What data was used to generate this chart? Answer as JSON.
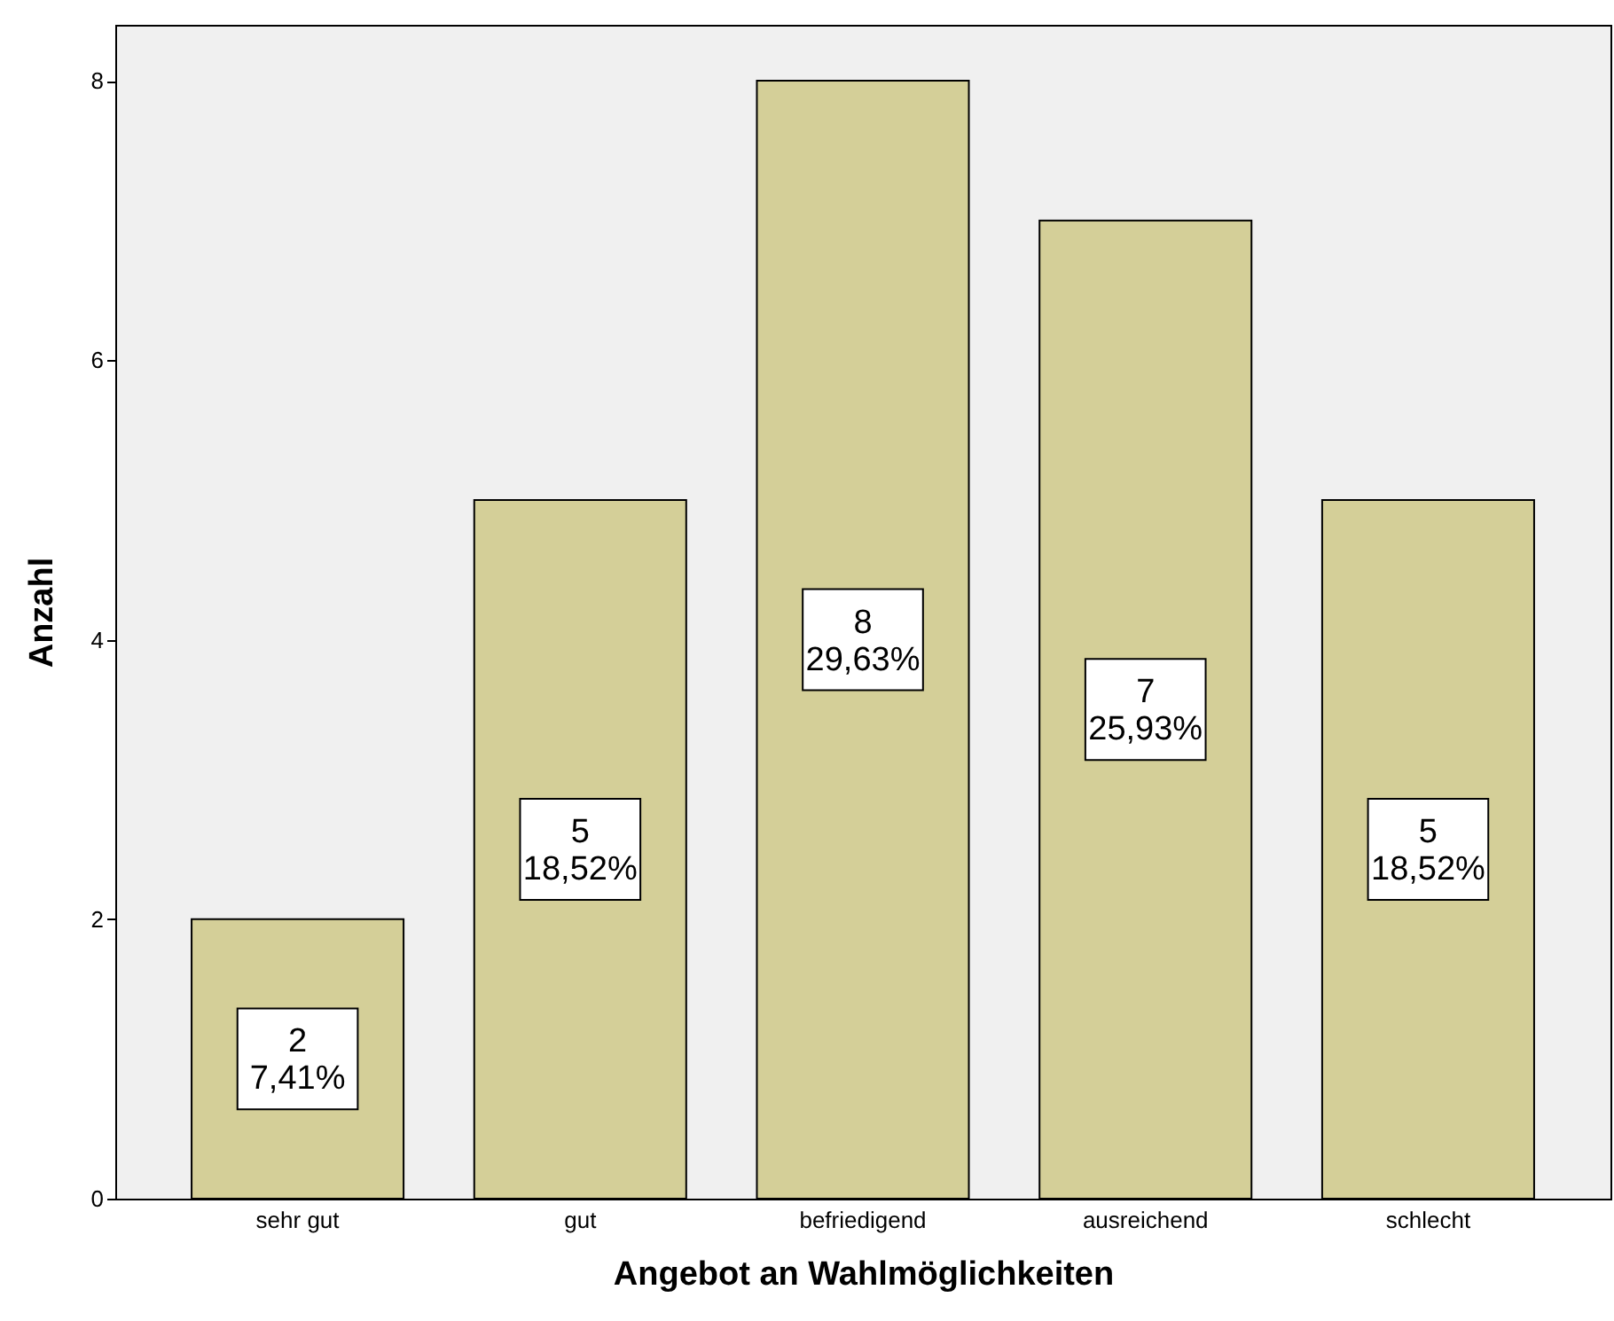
{
  "chart_data": {
    "type": "bar",
    "xlabel": "Angebot an Wahlmöglichkeiten",
    "ylabel": "Anzahl",
    "categories": [
      "sehr gut",
      "gut",
      "befriedigend",
      "ausreichend",
      "schlecht"
    ],
    "values": [
      2,
      5,
      8,
      7,
      5
    ],
    "value_labels": [
      "2\n7,41%",
      "5\n18,52%",
      "8\n29,63%",
      "7\n25,93%",
      "5\n18,52%"
    ],
    "color": "#d4cf98",
    "ylim": [
      0,
      8.4
    ],
    "yticks": [
      0,
      2,
      4,
      6,
      8
    ],
    "grid": false
  }
}
